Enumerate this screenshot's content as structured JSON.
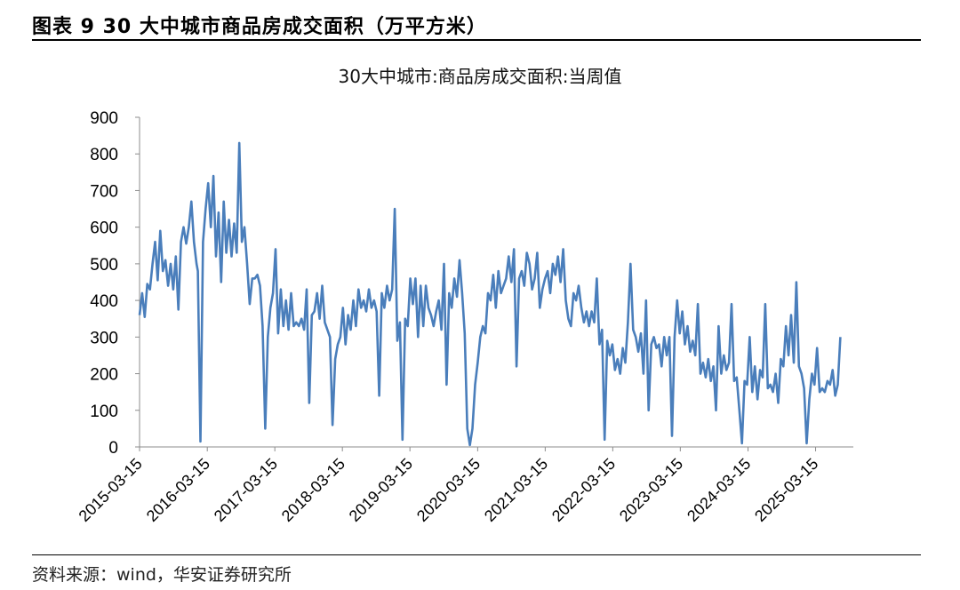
{
  "figure": {
    "title": "图表 9 30 大中城市商品房成交面积（万平方米）",
    "source": "资料来源：wind，华安证券研究所"
  },
  "chart_data": {
    "type": "line",
    "title": "30大中城市:商品房成交面积:当周值",
    "xlabel": "",
    "ylabel": "",
    "ylim": [
      0,
      900
    ],
    "yticks": [
      0,
      100,
      200,
      300,
      400,
      500,
      600,
      700,
      800,
      900
    ],
    "xtick_labels": [
      "2015-03-15",
      "2016-03-15",
      "2017-03-15",
      "2018-03-15",
      "2019-03-15",
      "2020-03-15",
      "2021-03-15",
      "2022-03-15",
      "2023-03-15",
      "2024-03-15",
      "2025-03-15"
    ],
    "xlim": [
      "2015-03-15",
      "2025-10-05"
    ],
    "grid": false,
    "legend": "none",
    "colors": {
      "line": "#4a7ebb"
    },
    "series": [
      {
        "name": "",
        "points": [
          [
            "2015-03-15",
            360
          ],
          [
            "2015-03-29",
            420
          ],
          [
            "2015-04-12",
            355
          ],
          [
            "2015-04-26",
            445
          ],
          [
            "2015-05-10",
            430
          ],
          [
            "2015-05-24",
            500
          ],
          [
            "2015-06-07",
            560
          ],
          [
            "2015-06-21",
            455
          ],
          [
            "2015-07-05",
            590
          ],
          [
            "2015-07-19",
            480
          ],
          [
            "2015-08-02",
            510
          ],
          [
            "2015-08-16",
            440
          ],
          [
            "2015-08-30",
            500
          ],
          [
            "2015-09-13",
            430
          ],
          [
            "2015-09-27",
            520
          ],
          [
            "2015-10-11",
            375
          ],
          [
            "2015-10-25",
            560
          ],
          [
            "2015-11-08",
            600
          ],
          [
            "2015-11-22",
            555
          ],
          [
            "2015-12-06",
            600
          ],
          [
            "2015-12-20",
            670
          ],
          [
            "2016-01-03",
            560
          ],
          [
            "2016-01-17",
            500
          ],
          [
            "2016-01-24",
            480
          ],
          [
            "2016-02-07",
            15
          ],
          [
            "2016-02-21",
            560
          ],
          [
            "2016-03-06",
            650
          ],
          [
            "2016-03-20",
            720
          ],
          [
            "2016-04-03",
            600
          ],
          [
            "2016-04-17",
            740
          ],
          [
            "2016-05-01",
            520
          ],
          [
            "2016-05-15",
            640
          ],
          [
            "2016-05-29",
            450
          ],
          [
            "2016-06-12",
            670
          ],
          [
            "2016-06-26",
            530
          ],
          [
            "2016-07-10",
            620
          ],
          [
            "2016-07-24",
            520
          ],
          [
            "2016-08-07",
            610
          ],
          [
            "2016-08-21",
            530
          ],
          [
            "2016-09-04",
            830
          ],
          [
            "2016-09-18",
            560
          ],
          [
            "2016-10-02",
            600
          ],
          [
            "2016-10-16",
            500
          ],
          [
            "2016-10-30",
            390
          ],
          [
            "2016-11-13",
            460
          ],
          [
            "2016-11-27",
            460
          ],
          [
            "2016-12-11",
            470
          ],
          [
            "2016-12-25",
            440
          ],
          [
            "2017-01-08",
            330
          ],
          [
            "2017-01-22",
            50
          ],
          [
            "2017-02-05",
            300
          ],
          [
            "2017-02-19",
            380
          ],
          [
            "2017-03-05",
            420
          ],
          [
            "2017-03-19",
            540
          ],
          [
            "2017-04-02",
            310
          ],
          [
            "2017-04-16",
            430
          ],
          [
            "2017-04-30",
            330
          ],
          [
            "2017-05-14",
            400
          ],
          [
            "2017-05-28",
            320
          ],
          [
            "2017-06-11",
            420
          ],
          [
            "2017-06-25",
            330
          ],
          [
            "2017-07-09",
            340
          ],
          [
            "2017-07-23",
            330
          ],
          [
            "2017-08-06",
            350
          ],
          [
            "2017-08-20",
            320
          ],
          [
            "2017-09-03",
            430
          ],
          [
            "2017-09-17",
            120
          ],
          [
            "2017-10-01",
            360
          ],
          [
            "2017-10-15",
            370
          ],
          [
            "2017-10-29",
            420
          ],
          [
            "2017-11-12",
            350
          ],
          [
            "2017-11-26",
            440
          ],
          [
            "2017-12-10",
            340
          ],
          [
            "2017-12-24",
            320
          ],
          [
            "2018-01-07",
            300
          ],
          [
            "2018-01-21",
            60
          ],
          [
            "2018-02-04",
            240
          ],
          [
            "2018-02-18",
            280
          ],
          [
            "2018-03-04",
            300
          ],
          [
            "2018-03-18",
            380
          ],
          [
            "2018-04-01",
            280
          ],
          [
            "2018-04-15",
            360
          ],
          [
            "2018-04-29",
            320
          ],
          [
            "2018-05-13",
            400
          ],
          [
            "2018-05-27",
            330
          ],
          [
            "2018-06-10",
            430
          ],
          [
            "2018-06-24",
            380
          ],
          [
            "2018-07-08",
            400
          ],
          [
            "2018-07-22",
            370
          ],
          [
            "2018-08-05",
            430
          ],
          [
            "2018-08-19",
            380
          ],
          [
            "2018-09-02",
            400
          ],
          [
            "2018-09-16",
            370
          ],
          [
            "2018-09-30",
            140
          ],
          [
            "2018-10-14",
            420
          ],
          [
            "2018-10-28",
            380
          ],
          [
            "2018-11-11",
            440
          ],
          [
            "2018-11-25",
            400
          ],
          [
            "2018-12-09",
            430
          ],
          [
            "2018-12-23",
            650
          ],
          [
            "2019-01-06",
            290
          ],
          [
            "2019-01-20",
            340
          ],
          [
            "2019-02-03",
            20
          ],
          [
            "2019-02-17",
            350
          ],
          [
            "2019-03-03",
            330
          ],
          [
            "2019-03-17",
            460
          ],
          [
            "2019-03-31",
            390
          ],
          [
            "2019-04-14",
            460
          ],
          [
            "2019-04-28",
            300
          ],
          [
            "2019-05-12",
            440
          ],
          [
            "2019-05-26",
            330
          ],
          [
            "2019-06-09",
            440
          ],
          [
            "2019-06-23",
            380
          ],
          [
            "2019-07-07",
            360
          ],
          [
            "2019-07-21",
            330
          ],
          [
            "2019-08-04",
            370
          ],
          [
            "2019-08-18",
            400
          ],
          [
            "2019-09-01",
            320
          ],
          [
            "2019-09-15",
            500
          ],
          [
            "2019-09-29",
            170
          ],
          [
            "2019-10-13",
            420
          ],
          [
            "2019-10-27",
            380
          ],
          [
            "2019-11-10",
            460
          ],
          [
            "2019-11-24",
            410
          ],
          [
            "2019-12-08",
            510
          ],
          [
            "2019-12-22",
            420
          ],
          [
            "2020-01-05",
            310
          ],
          [
            "2020-01-19",
            50
          ],
          [
            "2020-02-02",
            5
          ],
          [
            "2020-02-16",
            50
          ],
          [
            "2020-03-01",
            170
          ],
          [
            "2020-03-15",
            230
          ],
          [
            "2020-03-29",
            300
          ],
          [
            "2020-04-12",
            330
          ],
          [
            "2020-04-26",
            310
          ],
          [
            "2020-05-10",
            420
          ],
          [
            "2020-05-24",
            400
          ],
          [
            "2020-06-07",
            470
          ],
          [
            "2020-06-21",
            380
          ],
          [
            "2020-07-05",
            480
          ],
          [
            "2020-07-19",
            420
          ],
          [
            "2020-08-02",
            440
          ],
          [
            "2020-08-16",
            460
          ],
          [
            "2020-08-30",
            520
          ],
          [
            "2020-09-13",
            450
          ],
          [
            "2020-09-27",
            540
          ],
          [
            "2020-10-11",
            220
          ],
          [
            "2020-10-25",
            460
          ],
          [
            "2020-11-08",
            480
          ],
          [
            "2020-11-22",
            440
          ],
          [
            "2020-12-06",
            530
          ],
          [
            "2020-12-20",
            500
          ],
          [
            "2021-01-03",
            430
          ],
          [
            "2021-01-17",
            460
          ],
          [
            "2021-01-31",
            530
          ],
          [
            "2021-02-14",
            380
          ],
          [
            "2021-02-28",
            430
          ],
          [
            "2021-03-14",
            460
          ],
          [
            "2021-03-28",
            480
          ],
          [
            "2021-04-11",
            420
          ],
          [
            "2021-04-25",
            500
          ],
          [
            "2021-05-09",
            470
          ],
          [
            "2021-05-23",
            520
          ],
          [
            "2021-06-06",
            450
          ],
          [
            "2021-06-20",
            540
          ],
          [
            "2021-07-04",
            400
          ],
          [
            "2021-07-18",
            350
          ],
          [
            "2021-08-01",
            330
          ],
          [
            "2021-08-15",
            420
          ],
          [
            "2021-08-29",
            400
          ],
          [
            "2021-09-12",
            440
          ],
          [
            "2021-09-26",
            380
          ],
          [
            "2021-10-10",
            340
          ],
          [
            "2021-10-24",
            370
          ],
          [
            "2021-11-07",
            330
          ],
          [
            "2021-11-21",
            370
          ],
          [
            "2021-12-05",
            340
          ],
          [
            "2021-12-19",
            460
          ],
          [
            "2022-01-02",
            280
          ],
          [
            "2022-01-16",
            320
          ],
          [
            "2022-01-30",
            20
          ],
          [
            "2022-02-13",
            290
          ],
          [
            "2022-02-27",
            250
          ],
          [
            "2022-03-13",
            280
          ],
          [
            "2022-03-27",
            210
          ],
          [
            "2022-04-10",
            240
          ],
          [
            "2022-04-24",
            200
          ],
          [
            "2022-05-08",
            270
          ],
          [
            "2022-05-22",
            230
          ],
          [
            "2022-06-05",
            340
          ],
          [
            "2022-06-19",
            500
          ],
          [
            "2022-07-03",
            320
          ],
          [
            "2022-07-17",
            300
          ],
          [
            "2022-07-31",
            260
          ],
          [
            "2022-08-14",
            310
          ],
          [
            "2022-08-28",
            200
          ],
          [
            "2022-09-11",
            400
          ],
          [
            "2022-09-25",
            100
          ],
          [
            "2022-10-09",
            280
          ],
          [
            "2022-10-23",
            300
          ],
          [
            "2022-11-06",
            270
          ],
          [
            "2022-11-20",
            280
          ],
          [
            "2022-12-04",
            220
          ],
          [
            "2022-12-18",
            300
          ],
          [
            "2023-01-01",
            250
          ],
          [
            "2023-01-15",
            300
          ],
          [
            "2023-01-29",
            30
          ],
          [
            "2023-02-12",
            300
          ],
          [
            "2023-02-26",
            400
          ],
          [
            "2023-03-12",
            310
          ],
          [
            "2023-03-26",
            370
          ],
          [
            "2023-04-09",
            280
          ],
          [
            "2023-04-23",
            330
          ],
          [
            "2023-05-07",
            260
          ],
          [
            "2023-05-21",
            290
          ],
          [
            "2023-06-04",
            250
          ],
          [
            "2023-06-18",
            390
          ],
          [
            "2023-07-02",
            200
          ],
          [
            "2023-07-16",
            230
          ],
          [
            "2023-07-30",
            190
          ],
          [
            "2023-08-13",
            240
          ],
          [
            "2023-08-27",
            180
          ],
          [
            "2023-09-10",
            220
          ],
          [
            "2023-09-24",
            100
          ],
          [
            "2023-10-08",
            330
          ],
          [
            "2023-10-22",
            200
          ],
          [
            "2023-11-05",
            250
          ],
          [
            "2023-11-19",
            210
          ],
          [
            "2023-12-03",
            230
          ],
          [
            "2023-12-17",
            390
          ],
          [
            "2023-12-31",
            180
          ],
          [
            "2024-01-14",
            190
          ],
          [
            "2024-01-28",
            100
          ],
          [
            "2024-02-11",
            10
          ],
          [
            "2024-02-25",
            180
          ],
          [
            "2024-03-10",
            170
          ],
          [
            "2024-03-24",
            300
          ],
          [
            "2024-04-07",
            150
          ],
          [
            "2024-04-21",
            220
          ],
          [
            "2024-05-05",
            130
          ],
          [
            "2024-05-19",
            210
          ],
          [
            "2024-06-02",
            190
          ],
          [
            "2024-06-16",
            390
          ],
          [
            "2024-06-30",
            160
          ],
          [
            "2024-07-14",
            170
          ],
          [
            "2024-07-28",
            150
          ],
          [
            "2024-08-11",
            200
          ],
          [
            "2024-08-25",
            120
          ],
          [
            "2024-09-08",
            240
          ],
          [
            "2024-09-22",
            220
          ],
          [
            "2024-10-06",
            330
          ],
          [
            "2024-10-20",
            250
          ],
          [
            "2024-11-03",
            360
          ],
          [
            "2024-11-17",
            230
          ],
          [
            "2024-12-01",
            450
          ],
          [
            "2024-12-15",
            220
          ],
          [
            "2024-12-29",
            200
          ],
          [
            "2025-01-12",
            160
          ],
          [
            "2025-01-26",
            10
          ],
          [
            "2025-02-09",
            130
          ],
          [
            "2025-02-23",
            200
          ],
          [
            "2025-03-09",
            170
          ],
          [
            "2025-03-23",
            270
          ],
          [
            "2025-04-06",
            150
          ],
          [
            "2025-04-20",
            160
          ],
          [
            "2025-05-04",
            150
          ],
          [
            "2025-05-18",
            180
          ],
          [
            "2025-06-01",
            170
          ],
          [
            "2025-06-15",
            210
          ],
          [
            "2025-06-29",
            140
          ],
          [
            "2025-07-13",
            170
          ],
          [
            "2025-07-27",
            300
          ]
        ]
      }
    ]
  }
}
